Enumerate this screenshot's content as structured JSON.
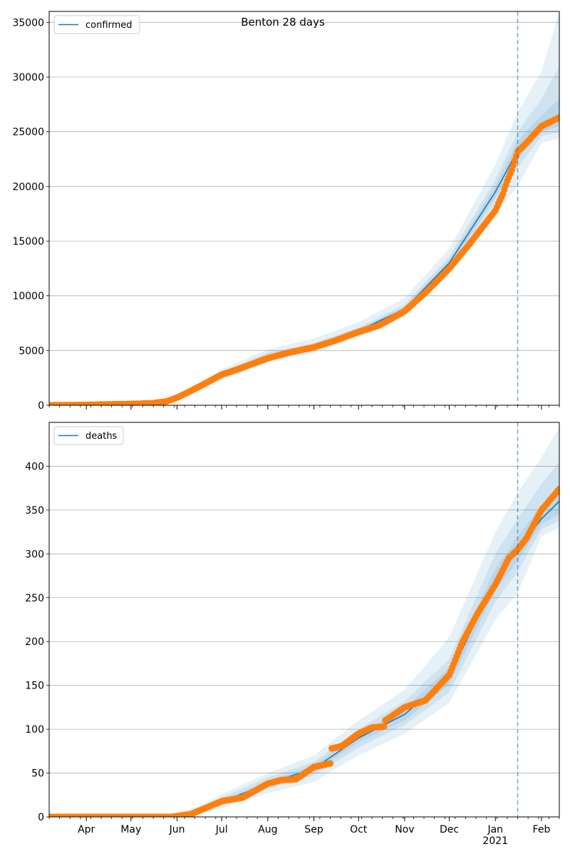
{
  "figure": {
    "title": "Benton 28 days",
    "x_axis": {
      "month_ticks": [
        "Apr",
        "May",
        "Jun",
        "Jul",
        "Aug",
        "Sep",
        "Oct",
        "Nov",
        "Dec",
        "Jan",
        "Feb"
      ],
      "year_label": "2021",
      "range": [
        "2020-03-07",
        "2021-02-13"
      ],
      "forecast_start": "2021-01-16"
    }
  },
  "chart_data": [
    {
      "type": "line",
      "legend": "confirmed",
      "legend_position": "upper-left",
      "grid": "horizontal",
      "ylim": [
        0,
        36000
      ],
      "yticks": [
        0,
        5000,
        10000,
        15000,
        20000,
        25000,
        30000,
        35000
      ],
      "colors": {
        "model": "#1f77b4",
        "observed": "#ff7f0e",
        "band": "#1f77b4",
        "vline": "#1f77b4"
      },
      "model": {
        "x": [
          "2020-03-07",
          "2020-05-15",
          "2020-06-01",
          "2020-07-01",
          "2020-08-01",
          "2020-09-01",
          "2020-10-01",
          "2020-11-01",
          "2020-12-01",
          "2021-01-01",
          "2021-01-16",
          "2021-02-01",
          "2021-02-13"
        ],
        "y": [
          0,
          150,
          500,
          2800,
          4500,
          5400,
          6800,
          8800,
          13000,
          19500,
          23300,
          25300,
          26100
        ]
      },
      "bands": [
        {
          "x": [
            "2020-05-15",
            "2020-06-01",
            "2020-07-01",
            "2020-08-01",
            "2020-09-01",
            "2020-10-01",
            "2020-11-01",
            "2020-12-01",
            "2021-01-01",
            "2021-01-16",
            "2021-02-01",
            "2021-02-13"
          ],
          "lower": [
            100,
            350,
            2300,
            3900,
            4800,
            6200,
            8100,
            11900,
            17600,
            20000,
            24000,
            24400
          ],
          "upper": [
            250,
            700,
            3300,
            5100,
            6100,
            7600,
            9800,
            14300,
            22000,
            26800,
            30500,
            36000
          ]
        },
        {
          "x": [
            "2020-05-15",
            "2020-06-01",
            "2020-07-01",
            "2020-08-01",
            "2020-09-01",
            "2020-10-01",
            "2020-11-01",
            "2020-12-01",
            "2021-01-01",
            "2021-01-16",
            "2021-02-01",
            "2021-02-13"
          ],
          "lower": [
            120,
            420,
            2550,
            4200,
            5100,
            6500,
            8450,
            12400,
            18500,
            21700,
            24600,
            25000
          ],
          "upper": [
            200,
            600,
            3050,
            4800,
            5700,
            7100,
            9200,
            13600,
            20600,
            25000,
            28000,
            31000
          ]
        },
        {
          "x": [
            "2020-05-15",
            "2020-06-01",
            "2020-07-01",
            "2020-08-01",
            "2020-09-01",
            "2020-10-01",
            "2020-11-01",
            "2020-12-01",
            "2021-01-01",
            "2021-01-16",
            "2021-02-01",
            "2021-02-13"
          ],
          "lower": [
            135,
            460,
            2680,
            4350,
            5250,
            6650,
            8620,
            12700,
            19000,
            22500,
            25000,
            25500
          ],
          "upper": [
            175,
            550,
            2930,
            4650,
            5550,
            6950,
            9000,
            13300,
            20000,
            24200,
            26500,
            28000
          ]
        }
      ],
      "observed": {
        "x": [
          "2020-03-07",
          "2020-04-01",
          "2020-04-15",
          "2020-05-01",
          "2020-05-15",
          "2020-05-25",
          "2020-06-01",
          "2020-06-10",
          "2020-06-20",
          "2020-07-01",
          "2020-07-10",
          "2020-07-20",
          "2020-08-01",
          "2020-08-15",
          "2020-09-01",
          "2020-09-15",
          "2020-10-01",
          "2020-10-15",
          "2020-11-01",
          "2020-11-15",
          "2020-12-01",
          "2020-12-15",
          "2021-01-01",
          "2021-01-06",
          "2021-01-09",
          "2021-01-12",
          "2021-01-16",
          "2021-01-22",
          "2021-02-01",
          "2021-02-13"
        ],
        "y": [
          0,
          30,
          80,
          120,
          180,
          350,
          700,
          1300,
          2000,
          2800,
          3200,
          3700,
          4300,
          4800,
          5300,
          5900,
          6700,
          7300,
          8600,
          10300,
          12500,
          14800,
          17800,
          19300,
          20500,
          21500,
          23200,
          24000,
          25500,
          26300
        ]
      }
    },
    {
      "type": "line",
      "legend": "deaths",
      "legend_position": "upper-left",
      "grid": "horizontal",
      "ylim": [
        0,
        450
      ],
      "yticks": [
        0,
        50,
        100,
        150,
        200,
        250,
        300,
        350,
        400
      ],
      "colors": {
        "model": "#1f77b4",
        "observed": "#ff7f0e",
        "band": "#1f77b4",
        "vline": "#1f77b4"
      },
      "model": {
        "x": [
          "2020-03-07",
          "2020-05-28",
          "2020-06-15",
          "2020-07-01",
          "2020-08-01",
          "2020-09-01",
          "2020-10-01",
          "2020-11-01",
          "2020-12-01",
          "2021-01-01",
          "2021-01-16",
          "2021-02-01",
          "2021-02-13"
        ],
        "y": [
          0,
          0,
          7,
          17,
          38,
          55,
          90,
          117,
          160,
          270,
          305,
          340,
          360
        ]
      },
      "bands": [
        {
          "x": [
            "2020-05-28",
            "2020-06-15",
            "2020-07-01",
            "2020-08-01",
            "2020-09-01",
            "2020-10-01",
            "2020-11-01",
            "2020-12-01",
            "2021-01-01",
            "2021-01-16",
            "2021-02-01",
            "2021-02-13"
          ],
          "lower": [
            0,
            3,
            10,
            27,
            40,
            70,
            95,
            130,
            225,
            255,
            320,
            330
          ],
          "upper": [
            2,
            12,
            26,
            50,
            70,
            110,
            145,
            205,
            325,
            370,
            410,
            445
          ]
        },
        {
          "x": [
            "2020-05-28",
            "2020-06-15",
            "2020-07-01",
            "2020-08-01",
            "2020-09-01",
            "2020-10-01",
            "2020-11-01",
            "2020-12-01",
            "2021-01-01",
            "2021-01-16",
            "2021-02-01",
            "2021-02-13"
          ],
          "lower": [
            0,
            5,
            13,
            32,
            47,
            79,
            105,
            142,
            245,
            280,
            328,
            338
          ],
          "upper": [
            1,
            9,
            22,
            45,
            63,
            100,
            132,
            180,
            300,
            340,
            380,
            405
          ]
        },
        {
          "x": [
            "2020-05-28",
            "2020-06-15",
            "2020-07-01",
            "2020-08-01",
            "2020-09-01",
            "2020-10-01",
            "2020-11-01",
            "2020-12-01",
            "2021-01-01",
            "2021-01-16",
            "2021-02-01",
            "2021-02-13"
          ],
          "lower": [
            0,
            6,
            15,
            35,
            51,
            85,
            110,
            151,
            258,
            292,
            334,
            345
          ],
          "upper": [
            1,
            8,
            19,
            41,
            59,
            95,
            124,
            170,
            283,
            320,
            355,
            378
          ]
        }
      ],
      "observed": {
        "x": [
          "2020-03-07",
          "2020-05-28",
          "2020-06-10",
          "2020-06-20",
          "2020-07-01",
          "2020-07-15",
          "2020-08-01",
          "2020-08-10",
          "2020-08-20",
          "2020-09-01",
          "2020-09-12",
          "2020-09-13",
          "2020-09-20",
          "2020-10-01",
          "2020-10-10",
          "2020-10-18",
          "2020-10-19",
          "2020-11-01",
          "2020-11-15",
          "2020-12-01",
          "2020-12-10",
          "2020-12-20",
          "2021-01-01",
          "2021-01-10",
          "2021-01-16",
          "2021-01-22",
          "2021-02-01",
          "2021-02-13"
        ],
        "y": [
          0,
          0,
          3,
          10,
          18,
          22,
          38,
          42,
          43,
          57,
          61,
          78,
          81,
          95,
          102,
          103,
          110,
          125,
          133,
          162,
          200,
          232,
          265,
          295,
          305,
          318,
          350,
          374
        ]
      }
    }
  ]
}
